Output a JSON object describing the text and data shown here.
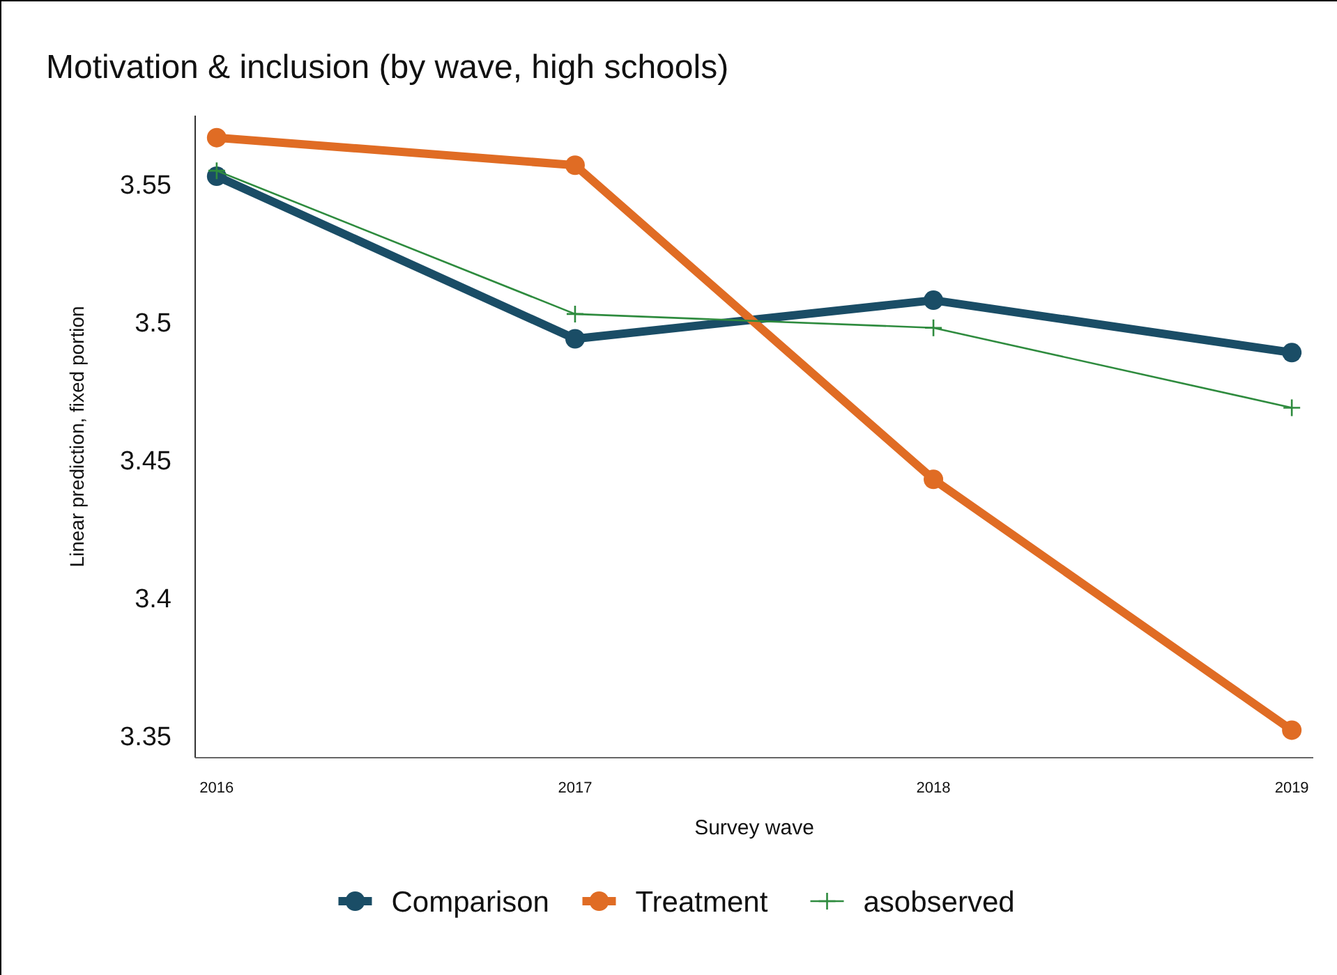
{
  "chart_data": {
    "type": "line",
    "title": "Motivation & inclusion (by wave, high schools)",
    "xlabel": "Survey wave",
    "ylabel": "Linear prediction, fixed portion",
    "x": [
      2016,
      2017,
      2018,
      2019
    ],
    "series": [
      {
        "name": "Comparison",
        "color": "#1a4d66",
        "values": [
          3.553,
          3.494,
          3.508,
          3.489
        ],
        "marker": "circle"
      },
      {
        "name": "Treatment",
        "color": "#e06c24",
        "values": [
          3.567,
          3.557,
          3.443,
          3.352
        ],
        "marker": "circle"
      },
      {
        "name": "asobserved",
        "color": "#2e8b3e",
        "values": [
          3.555,
          3.503,
          3.498,
          3.469
        ],
        "marker": "cross"
      }
    ],
    "xlim": [
      2015.94,
      2019.06
    ],
    "xticks": [
      2016,
      2017,
      2018,
      2019
    ],
    "ylim": [
      3.342,
      3.575
    ],
    "yticks": [
      3.35,
      {
        "value": 3.4,
        "label": "3.4"
      },
      3.45,
      {
        "value": 3.5,
        "label": "3.5"
      },
      3.55
    ],
    "grid": false,
    "legend": "bottom"
  }
}
